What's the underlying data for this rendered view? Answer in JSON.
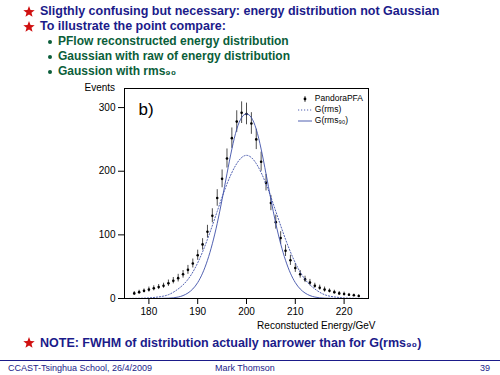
{
  "slide": {
    "bullets": [
      "Sligthly confusing but necessary: energy distribution not Gaussian",
      "To illustrate the point compare:"
    ],
    "sub_bullets": [
      "PFlow reconstructed energy distribution",
      "Gaussian with raw of energy distribution",
      "Gaussion with rms₉₀"
    ],
    "note": "NOTE: FWHM of distribution actually narrower than for G(rms₉₀)",
    "footer": [
      "CCAST-Tsinghua School, 26/4/2009",
      "Mark Thomson",
      "39"
    ]
  },
  "chart_data": {
    "type": "scatter",
    "annotations": [
      "b)"
    ],
    "xlabel": "Reconstucted Energy/GeV",
    "ylabel": "Events",
    "xlim": [
      175,
      225
    ],
    "ylim": [
      0,
      330
    ],
    "xticks": [
      180,
      190,
      200,
      210,
      220
    ],
    "yticks": [
      0,
      100,
      200,
      300
    ],
    "grid": false,
    "legend": "top-right",
    "series": [
      {
        "name": "PandoraPFA",
        "type": "scatter",
        "marker": "point",
        "color": "#000000",
        "x": [
          177,
          178,
          179,
          180,
          181,
          182,
          183,
          184,
          185,
          186,
          187,
          188,
          189,
          190,
          191,
          192,
          193,
          194,
          195,
          196,
          197,
          198,
          199,
          200,
          201,
          202,
          203,
          204,
          205,
          206,
          207,
          208,
          209,
          210,
          211,
          212,
          213,
          214,
          215,
          216,
          217,
          218,
          219,
          220,
          221,
          222,
          223
        ],
        "values": [
          8,
          10,
          12,
          14,
          16,
          18,
          20,
          24,
          28,
          32,
          38,
          45,
          55,
          68,
          85,
          105,
          130,
          158,
          188,
          220,
          252,
          278,
          292,
          290,
          275,
          250,
          215,
          182,
          150,
          120,
          95,
          75,
          60,
          48,
          38,
          30,
          25,
          20,
          17,
          14,
          12,
          10,
          8,
          7,
          6,
          5,
          4
        ],
        "errors": [
          3,
          3,
          3,
          4,
          4,
          4,
          4,
          5,
          5,
          6,
          6,
          7,
          7,
          8,
          9,
          10,
          11,
          13,
          14,
          15,
          16,
          17,
          17,
          17,
          17,
          16,
          15,
          13,
          12,
          11,
          10,
          9,
          8,
          7,
          6,
          5,
          5,
          4,
          4,
          4,
          3,
          3,
          3,
          3,
          2,
          2,
          2
        ]
      },
      {
        "name": "G(rms)",
        "type": "line",
        "line_style": "dotted",
        "color": "#3d4fa8",
        "x": [
          176,
          178,
          180,
          182,
          184,
          186,
          188,
          190,
          192,
          194,
          196,
          198,
          200,
          202,
          204,
          206,
          208,
          210,
          212,
          214,
          216,
          218,
          220,
          222,
          224
        ],
        "values": [
          0.1,
          0.3,
          0.9,
          2.5,
          6,
          15,
          30,
          56,
          93,
          137,
          180,
          212,
          225,
          212,
          180,
          137,
          93,
          56,
          30,
          15,
          6,
          2.5,
          0.9,
          0.3,
          0.1
        ]
      },
      {
        "name": "G(rms₉₀)",
        "type": "line",
        "line_style": "solid",
        "color": "#3d4fa8",
        "x": [
          176,
          178,
          180,
          182,
          184,
          186,
          188,
          190,
          192,
          194,
          196,
          198,
          200,
          202,
          204,
          206,
          208,
          210,
          212,
          214,
          216,
          218,
          220,
          222,
          224
        ],
        "values": [
          0,
          0,
          0,
          0.1,
          0.5,
          2.3,
          8.6,
          25,
          60,
          118,
          196,
          266,
          290,
          266,
          196,
          118,
          60,
          25,
          8.6,
          2.3,
          0.5,
          0.1,
          0,
          0,
          0
        ]
      }
    ]
  }
}
